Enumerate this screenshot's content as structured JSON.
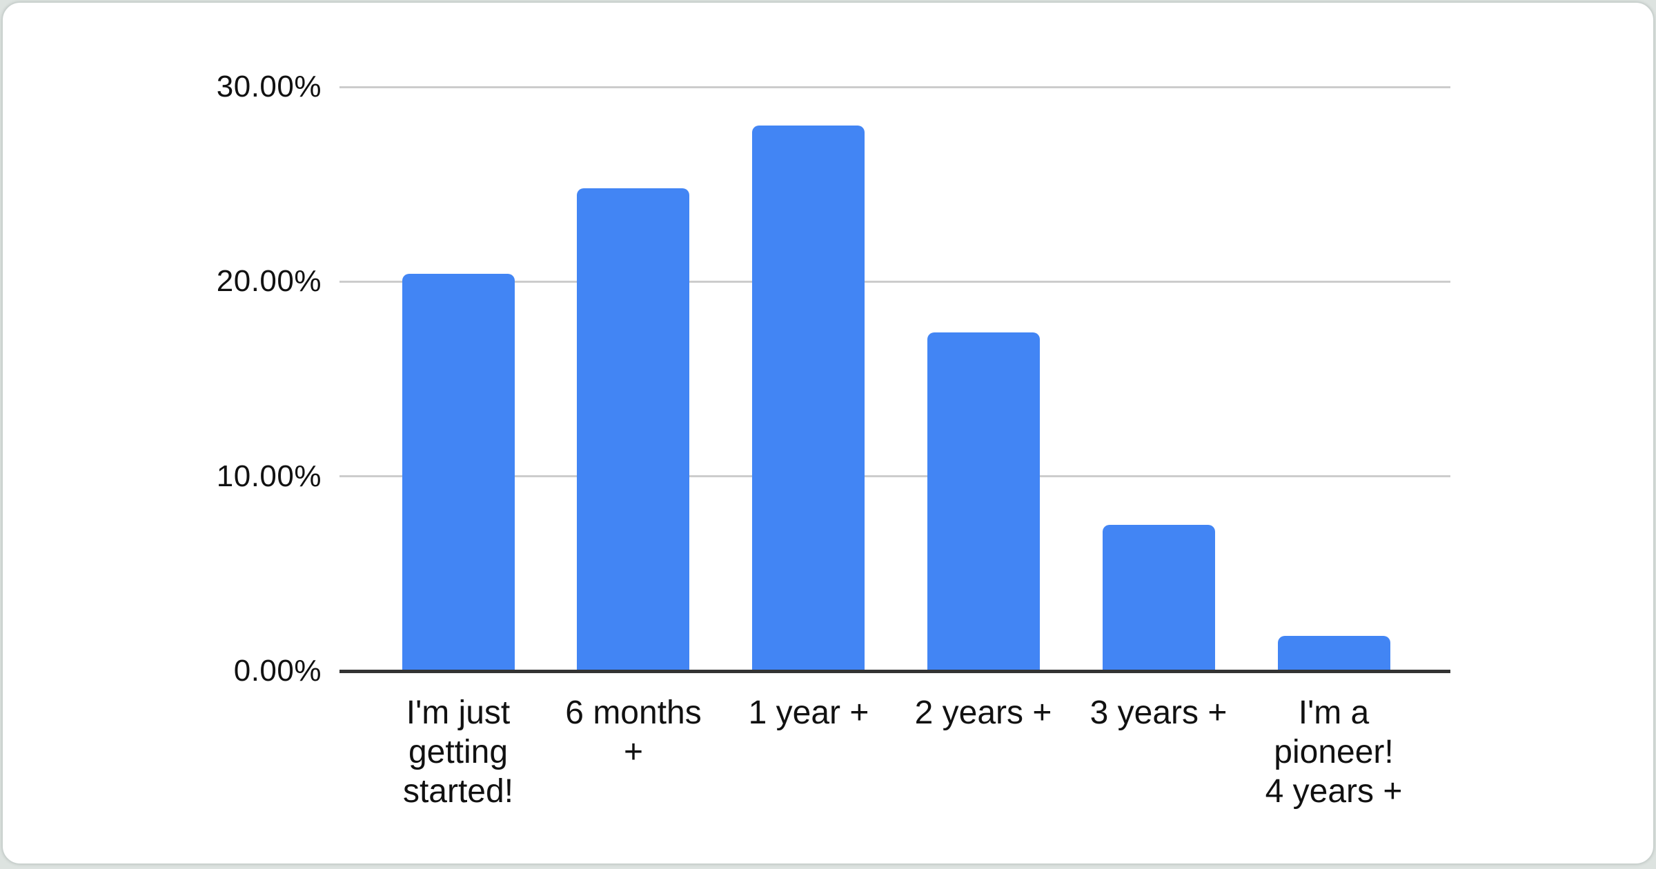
{
  "chart_data": {
    "type": "bar",
    "title": "",
    "xlabel": "",
    "ylabel": "",
    "categories": [
      "I'm just getting started!",
      "6 months +",
      "1 year +",
      "2 years +",
      "3 years +",
      "I'm a pioneer! 4 years +"
    ],
    "category_display_lines": [
      [
        "I'm just",
        "getting",
        "started!"
      ],
      [
        "6 months",
        "+"
      ],
      [
        "1 year +"
      ],
      [
        "2 years +"
      ],
      [
        "3 years +"
      ],
      [
        "I'm a",
        "pioneer!",
        "4 years +"
      ]
    ],
    "values": [
      20.4,
      24.8,
      28.0,
      17.4,
      7.5,
      1.8
    ],
    "value_unit": "percent",
    "ylim": [
      0,
      30
    ],
    "yticks": [
      0,
      10,
      20,
      30
    ],
    "ytick_labels": [
      "0.00%",
      "10.00%",
      "20.00%",
      "30.00%"
    ],
    "grid": true,
    "legend_position": "none",
    "bar_color": "#4285F4"
  },
  "colors": {
    "bar": "#4285F4",
    "gridline": "#cccccc",
    "axis_baseline": "#333333",
    "text": "#111111",
    "card_background": "#ffffff",
    "page_background": "#dde3e0"
  }
}
